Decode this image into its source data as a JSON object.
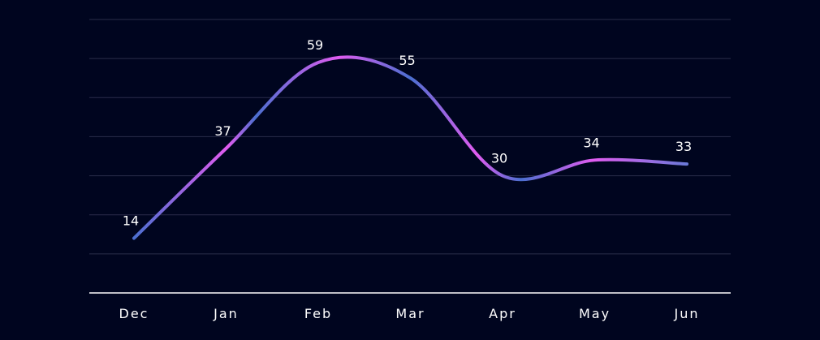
{
  "colors": {
    "background": "#00051f",
    "grid": "#2a2d4a",
    "axis": "#ffffff",
    "line_blue": "#4b6fd0",
    "line_pink": "#e15cf0",
    "text": "#ffffff"
  },
  "chart_data": {
    "type": "line",
    "title": "",
    "xlabel": "",
    "ylabel": "",
    "categories": [
      "Dec",
      "Jan",
      "Feb",
      "Mar",
      "Apr",
      "May",
      "Jun"
    ],
    "series": [
      {
        "values": [
          14,
          37,
          59,
          55,
          30,
          34,
          33
        ]
      }
    ],
    "ylim": [
      0,
      70
    ],
    "grid": true,
    "curve": "smooth",
    "data_labels": true
  }
}
